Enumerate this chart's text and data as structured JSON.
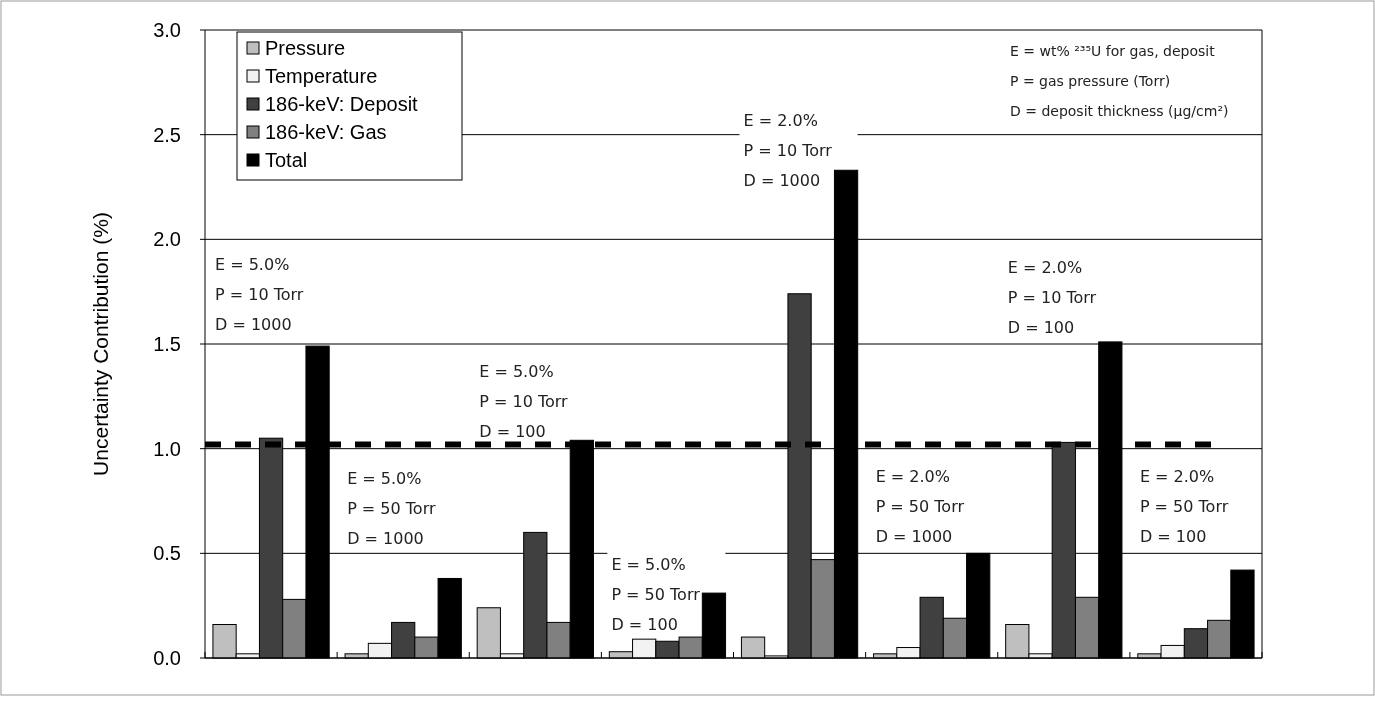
{
  "chart_data": {
    "type": "bar",
    "ylabel": "Uncertainty Contribution (%)",
    "categories": [
      null,
      null,
      null,
      null,
      null,
      null,
      null,
      null
    ],
    "series": [
      {
        "name": "Pressure",
        "color": "#bfbfbf",
        "values": [
          0.16,
          0.02,
          0.24,
          0.03,
          0.1,
          0.02,
          0.16,
          0.02
        ]
      },
      {
        "name": "Temperature",
        "color": "#f2f2f2",
        "values": [
          0.02,
          0.07,
          0.02,
          0.09,
          0.01,
          0.05,
          0.02,
          0.06
        ]
      },
      {
        "name": "186-keV: Deposit",
        "color": "#404040",
        "values": [
          1.05,
          0.17,
          0.6,
          0.08,
          1.74,
          0.29,
          1.03,
          0.14
        ]
      },
      {
        "name": "186-keV: Gas",
        "color": "#808080",
        "values": [
          0.28,
          0.1,
          0.17,
          0.1,
          0.47,
          0.19,
          0.29,
          0.18
        ]
      },
      {
        "name": "Total",
        "color": "#000000",
        "values": [
          1.49,
          0.38,
          1.04,
          0.31,
          2.33,
          0.5,
          1.51,
          0.42
        ]
      }
    ],
    "ylim": [
      0,
      3
    ],
    "yticks": [
      {
        "value": 0,
        "label": "0.0"
      },
      {
        "value": 0.5,
        "label": "0.5"
      },
      {
        "value": 1,
        "label": "1.0"
      },
      {
        "value": 1.5,
        "label": "1.5"
      },
      {
        "value": 2,
        "label": "2.0"
      },
      {
        "value": 2.5,
        "label": "2.5"
      },
      {
        "value": 3,
        "label": "3.0"
      }
    ],
    "grid": "y",
    "legend": "top left",
    "ref_lines": [
      {
        "axis": "y",
        "value": 1.02,
        "line_style": "dashed",
        "color": "#000000"
      }
    ],
    "annotations": [
      "E = 5.0%\nP = 10 Torr\nD = 1000",
      "E = 5.0%\nP = 50 Torr\nD = 1000",
      "E = 5.0%\nP = 10 Torr\nD = 100",
      "E = 5.0%\nP = 50 Torr\nD = 100",
      "E = 2.0%\nP = 10 Torr\nD = 1000",
      "E = 2.0%\nP = 50 Torr\nD = 1000",
      "E = 2.0%\nP = 10 Torr\nD = 100",
      "E = 2.0%\nP = 50 Torr\nD = 100",
      "E = wt% ²³⁵U for gas, deposit\nP = gas pressure (Torr)\nD = deposit thickness (μg/cm²)"
    ]
  }
}
